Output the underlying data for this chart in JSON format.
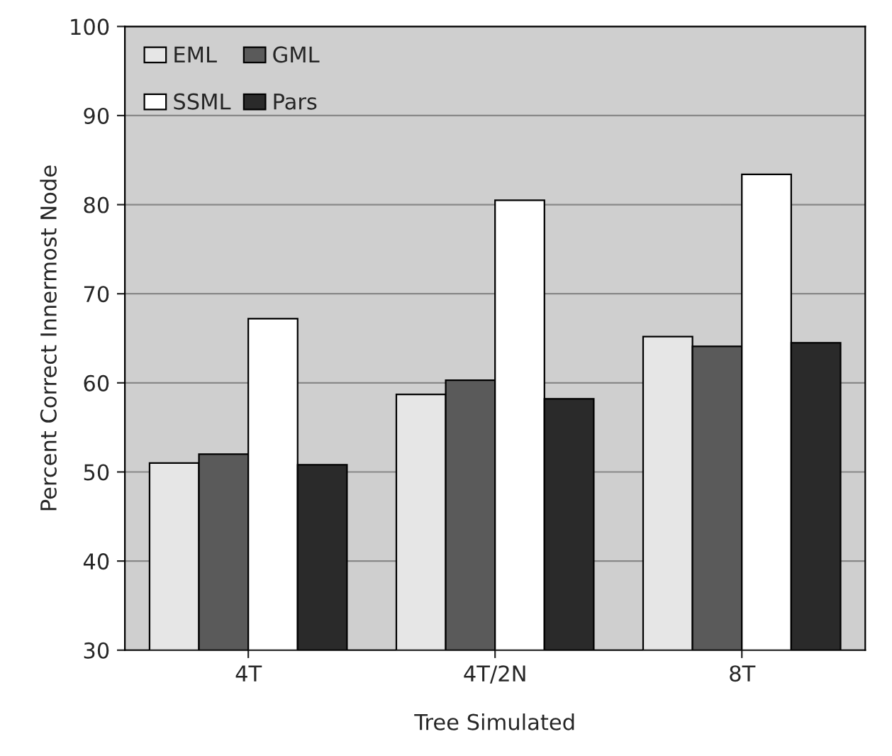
{
  "chart_data": {
    "type": "bar",
    "xlabel": "Tree Simulated",
    "ylabel": "Percent Correct Innermost Node",
    "categories": [
      "4T",
      "4T/2N",
      "8T"
    ],
    "series": [
      {
        "name": "EML",
        "color": "#e6e6e6",
        "values": [
          51.0,
          58.7,
          65.2
        ]
      },
      {
        "name": "GML",
        "color": "#5a5a5a",
        "values": [
          52.0,
          60.3,
          64.1
        ]
      },
      {
        "name": "SSML",
        "color": "#ffffff",
        "values": [
          67.2,
          80.5,
          83.4
        ]
      },
      {
        "name": "Pars",
        "color": "#2a2a2a",
        "values": [
          50.8,
          58.2,
          64.5
        ]
      }
    ],
    "ylim": [
      30,
      100
    ],
    "yticks": [
      30,
      40,
      50,
      60,
      70,
      80,
      90,
      100
    ],
    "grid": "y",
    "legend": "top left"
  }
}
